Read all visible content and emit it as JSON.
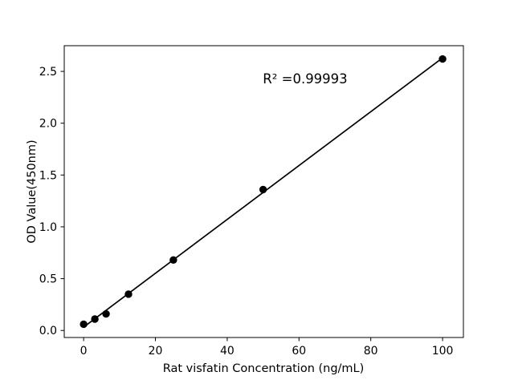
{
  "chart_data": {
    "type": "scatter",
    "title": "",
    "xlabel": "Rat visfatin Concentration (ng/mL)",
    "ylabel": "OD Value(450nm)",
    "annotation": "R² =0.99993",
    "r_squared": 0.99993,
    "x": [
      0,
      3.125,
      6.25,
      12.5,
      25,
      50,
      100
    ],
    "y": [
      0.06,
      0.11,
      0.16,
      0.35,
      0.68,
      1.36,
      2.62
    ],
    "fit_line": "linear",
    "xticks": [
      0,
      20,
      40,
      60,
      80,
      100
    ],
    "xtick_labels": [
      "0",
      "20",
      "40",
      "60",
      "80",
      "100"
    ],
    "yticks": [
      0.0,
      0.5,
      1.0,
      1.5,
      2.0,
      2.5
    ],
    "ytick_labels": [
      "0.0",
      "0.5",
      "1.0",
      "1.5",
      "2.0",
      "2.5"
    ],
    "xlim": [
      -5.4,
      105.8
    ],
    "ylim": [
      -0.068,
      2.748
    ],
    "grid": false,
    "legend": false,
    "marker_color": "#000000",
    "line_color": "#000000",
    "frame_color": "#000000",
    "background_color": "#ffffff"
  }
}
